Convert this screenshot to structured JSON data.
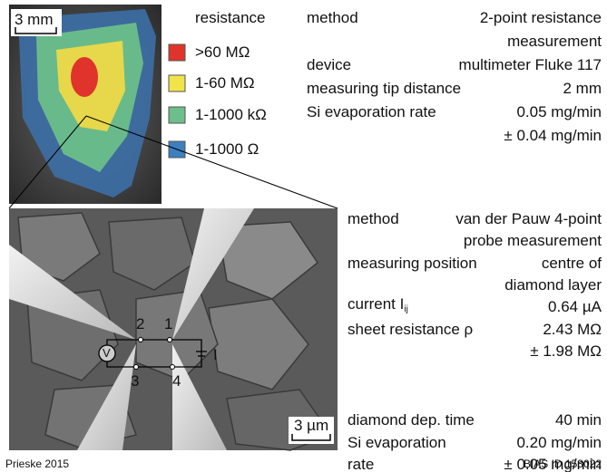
{
  "top_image": {
    "scalebar": "3 mm"
  },
  "legend": {
    "title": "resistance",
    "items": [
      ">60 MΩ",
      "1-60 MΩ",
      "1-1000 kΩ",
      "1-1000 Ω"
    ]
  },
  "sem_image": {
    "scalebar": "3 µm",
    "labels": [
      "1",
      "2",
      "3",
      "4"
    ],
    "voltmeter": "V",
    "current_source": "I"
  },
  "tables": [
    {
      "rows": [
        {
          "label": [
            "method"
          ],
          "value": [
            "2-point resistance",
            "measurement"
          ]
        },
        {
          "label": [
            "device"
          ],
          "value": [
            "multimeter Fluke 117"
          ]
        },
        {
          "label": [
            "measuring tip distance"
          ],
          "value": [
            "2 mm"
          ]
        },
        {
          "label": [
            "Si evaporation rate"
          ],
          "value": [
            "0.05 mg/min",
            "± 0.04 mg/min"
          ]
        }
      ]
    },
    {
      "rows": [
        {
          "label": [
            "method"
          ],
          "value": [
            "van der Pauw 4-point",
            "probe measurement"
          ]
        },
        {
          "label": [
            "measuring position"
          ],
          "value": [
            "centre of",
            "diamond layer"
          ]
        },
        {
          "label": [
            "current I"
          ],
          "label_sub": "ij",
          "value": [
            "0.64 µA"
          ]
        },
        {
          "label": [
            "sheet resistance ρ"
          ],
          "value": [
            "2.43 MΩ",
            "± 1.98 MΩ"
          ]
        }
      ]
    },
    {
      "rows": [
        {
          "label": [
            "diamond dep. time"
          ],
          "value": [
            "40 min"
          ]
        },
        {
          "label": [
            "Si evaporation",
            "rate"
          ],
          "value": [
            "0.20 mg/min",
            "± 0.05 mg/min"
          ]
        }
      ]
    }
  ],
  "footer": {
    "left": "Prieske 2015",
    "right": "BIAS ID 153022"
  }
}
